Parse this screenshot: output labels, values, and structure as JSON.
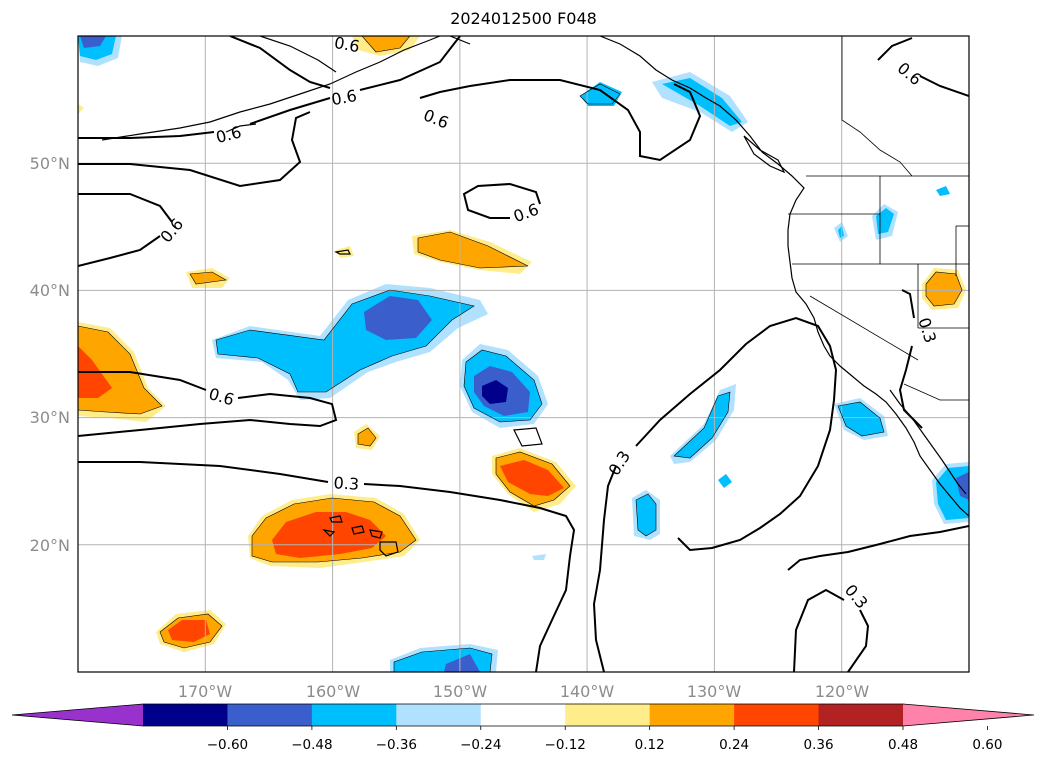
{
  "title": "2024012500 F048",
  "map": {
    "projection": "plate-carree",
    "lon_range": [
      -180,
      -110
    ],
    "lat_range": [
      10,
      60
    ],
    "grid": true,
    "lat_ticks": [
      "50°N",
      "40°N",
      "30°N",
      "20°N"
    ],
    "lon_ticks": [
      "170°W",
      "160°W",
      "150°W",
      "140°W",
      "130°W",
      "120°W"
    ],
    "contour_labels": [
      "0.6",
      "0.6",
      "0.6",
      "0.6",
      "0.6",
      "0.6",
      "0.6",
      "0.6",
      "0.3",
      "0.3",
      "0.3",
      "0.3"
    ]
  },
  "colorbar": {
    "extend": "both",
    "colors": [
      "#9932cc",
      "#00008b",
      "#3a5fcd",
      "#00bfff",
      "#b0e2ff",
      "#ffffff",
      "#ffec8b",
      "#ffa500",
      "#ff4500",
      "#b22222",
      "#ff82ab"
    ],
    "tick_labels": [
      "−0.60",
      "−0.48",
      "−0.36",
      "−0.24",
      "−0.12",
      "0.12",
      "0.24",
      "0.36",
      "0.48",
      "0.60"
    ]
  }
}
